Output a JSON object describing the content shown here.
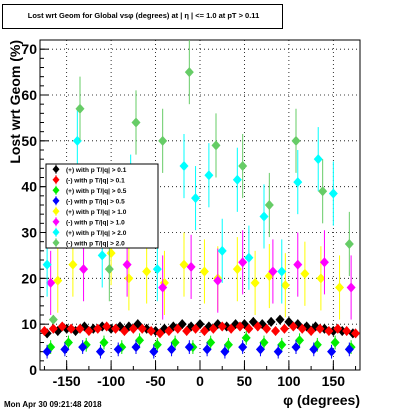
{
  "chart_data": {
    "type": "scatter",
    "title": "Lost wrt Geom for Global vsφ (degrees) at | η | <= 1.0 at pT > 0.11",
    "xlabel": "φ (degrees)",
    "ylabel": "Lost  wrt  Geom (%)",
    "xlim": [
      -180,
      180
    ],
    "ylim": [
      0,
      72
    ],
    "xticks": [
      -150,
      -100,
      -50,
      0,
      50,
      100,
      150
    ],
    "yticks": [
      0,
      10,
      20,
      30,
      40,
      50,
      60,
      70
    ],
    "grid": true,
    "legend_position": "left-middle",
    "series": [
      {
        "name": "(+) with p T/|q| > 0.1",
        "color": "#000000",
        "x": [
          -172,
          -160,
          -150,
          -140,
          -130,
          -120,
          -110,
          -100,
          -90,
          -80,
          -70,
          -60,
          -50,
          -40,
          -30,
          -20,
          -10,
          0,
          10,
          20,
          30,
          40,
          50,
          60,
          70,
          80,
          90,
          100,
          110,
          120,
          130,
          140,
          150,
          160,
          172
        ],
        "y": [
          8.0,
          8.5,
          9.0,
          8.5,
          9.5,
          9.0,
          9.5,
          9.0,
          9.5,
          9.5,
          10.0,
          9.0,
          8.5,
          9.0,
          9.5,
          10.0,
          9.5,
          10.0,
          9.5,
          10.0,
          9.5,
          10.0,
          10.0,
          10.5,
          10.0,
          10.5,
          11.0,
          10.5,
          10.0,
          9.5,
          9.5,
          9.0,
          8.5,
          8.5,
          8.0
        ]
      },
      {
        "name": "(-) with p T/|q| > 0.1",
        "color": "#ff0000",
        "x": [
          -175,
          -165,
          -155,
          -145,
          -135,
          -125,
          -115,
          -105,
          -95,
          -85,
          -75,
          -65,
          -55,
          -45,
          -35,
          -25,
          -15,
          -5,
          5,
          15,
          25,
          35,
          45,
          55,
          65,
          75,
          85,
          95,
          105,
          115,
          125,
          135,
          145,
          155,
          165,
          175
        ],
        "y": [
          8.5,
          9.0,
          9.5,
          9.0,
          9.0,
          8.5,
          9.0,
          9.5,
          9.0,
          8.5,
          9.0,
          9.0,
          8.5,
          8.0,
          8.5,
          9.0,
          8.5,
          9.0,
          8.5,
          9.0,
          9.5,
          9.0,
          9.5,
          9.0,
          9.5,
          9.0,
          8.5,
          9.0,
          9.5,
          9.0,
          8.5,
          9.0,
          8.5,
          9.0,
          8.5,
          8.0
        ]
      },
      {
        "name": "(+) with p T/|q| > 0.5",
        "color": "#00ee00",
        "x": [
          -168,
          -148,
          -128,
          -108,
          -88,
          -68,
          -48,
          -28,
          -8,
          12,
          32,
          52,
          72,
          92,
          112,
          132,
          152,
          170
        ],
        "y": [
          5.0,
          6.0,
          5.5,
          6.0,
          5.0,
          6.5,
          5.5,
          6.0,
          5.0,
          6.0,
          5.5,
          7.0,
          6.0,
          5.5,
          6.5,
          5.5,
          6.0,
          5.0
        ]
      },
      {
        "name": "(-) with p T/|q| > 0.5",
        "color": "#0000ff",
        "x": [
          -172,
          -152,
          -132,
          -112,
          -92,
          -72,
          -52,
          -32,
          -12,
          8,
          28,
          48,
          68,
          88,
          108,
          128,
          148,
          168
        ],
        "y": [
          4.0,
          4.5,
          5.0,
          4.0,
          4.5,
          5.0,
          4.0,
          4.5,
          5.0,
          4.5,
          4.0,
          5.0,
          4.5,
          4.0,
          5.0,
          4.5,
          4.0,
          4.5
        ]
      },
      {
        "name": "(+) with p T/|q| > 1.0",
        "color": "#ffff00",
        "x": [
          -160,
          -143,
          -100,
          -80,
          -60,
          -40,
          -18,
          5,
          20,
          42,
          62,
          78,
          96,
          118,
          136,
          157
        ],
        "y": [
          19.5,
          23.0,
          25.5,
          20.0,
          21.5,
          19.0,
          23.0,
          21.5,
          20.0,
          22.0,
          19.0,
          20.5,
          18.5,
          21.0,
          20.0,
          18.0
        ]
      },
      {
        "name": "(-) with p T/|q| > 1.0",
        "color": "#ff00ff",
        "x": [
          -168,
          -131,
          -82,
          -42,
          -10,
          20,
          48,
          82,
          110,
          140,
          170
        ],
        "y": [
          19.0,
          22.0,
          23.0,
          18.0,
          22.5,
          19.5,
          23.5,
          21.5,
          23.0,
          23.5,
          18.0
        ]
      },
      {
        "name": "(+) with p T/|q| > 2.0",
        "color": "#00ffff",
        "x": [
          -172,
          -138,
          -110,
          -92,
          -78,
          -48,
          -18,
          -5,
          10,
          25,
          42,
          55,
          72,
          92,
          110,
          133,
          150
        ],
        "y": [
          23.0,
          50.0,
          25.0,
          36.5,
          40.0,
          22.0,
          44.5,
          37.5,
          42.5,
          26.0,
          41.5,
          24.5,
          33.5,
          21.5,
          41.0,
          46.0,
          38.5
        ]
      },
      {
        "name": "(-) with p T/|q| > 2.0",
        "color": "#66cc66",
        "x": [
          -165,
          -135,
          -102,
          -72,
          -42,
          -12,
          18,
          48,
          78,
          108,
          138,
          168
        ],
        "y": [
          11.0,
          57.0,
          22.0,
          54.0,
          50.0,
          65.0,
          49.0,
          44.5,
          36.0,
          50.0,
          39.0,
          27.5
        ]
      }
    ]
  },
  "footer": "Mon Apr 30 09:21:48 2018"
}
